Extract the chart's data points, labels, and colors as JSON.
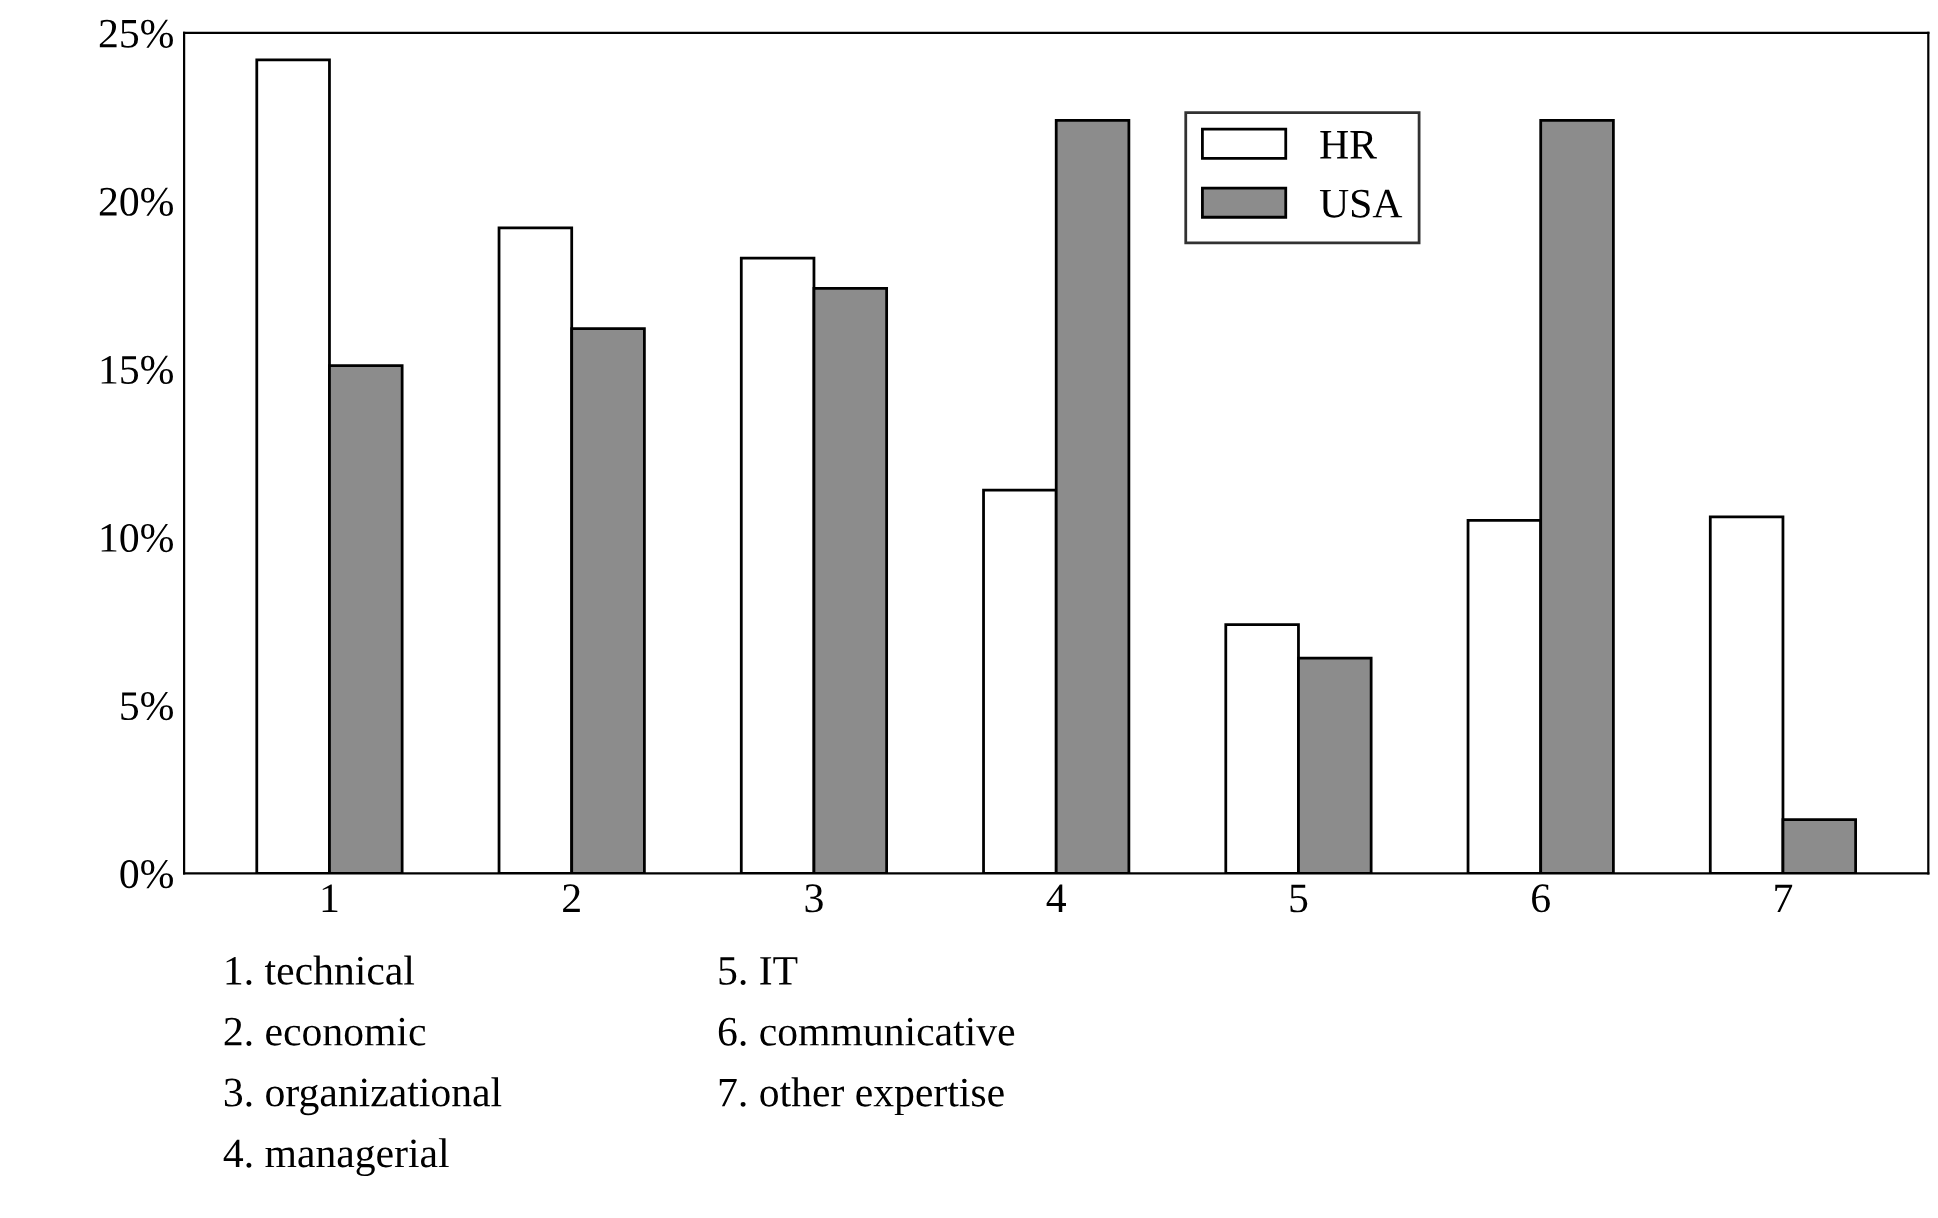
{
  "chart_data": {
    "type": "bar",
    "categories": [
      "1",
      "2",
      "3",
      "4",
      "5",
      "6",
      "7"
    ],
    "series": [
      {
        "name": "HR",
        "color": "#ffffff",
        "values": [
          24.2,
          19.2,
          18.3,
          11.4,
          7.4,
          10.5,
          10.6
        ]
      },
      {
        "name": "USA",
        "color": "#8c8c8c",
        "values": [
          15.1,
          16.2,
          17.4,
          22.4,
          6.4,
          22.4,
          1.6
        ]
      }
    ],
    "ylim": [
      0,
      25
    ],
    "yticks": [
      {
        "value": 0,
        "label": "0%"
      },
      {
        "value": 5,
        "label": "5%"
      },
      {
        "value": 10,
        "label": "10%"
      },
      {
        "value": 15,
        "label": "15%"
      },
      {
        "value": 20,
        "label": "20%"
      },
      {
        "value": 25,
        "label": "25%"
      }
    ],
    "grid": false,
    "legend": "top right",
    "annotations": [
      "1. technical",
      "2. economic",
      "3. organizational",
      "4. managerial",
      "5. IT",
      "6. communicative",
      "7. other expertise"
    ]
  }
}
